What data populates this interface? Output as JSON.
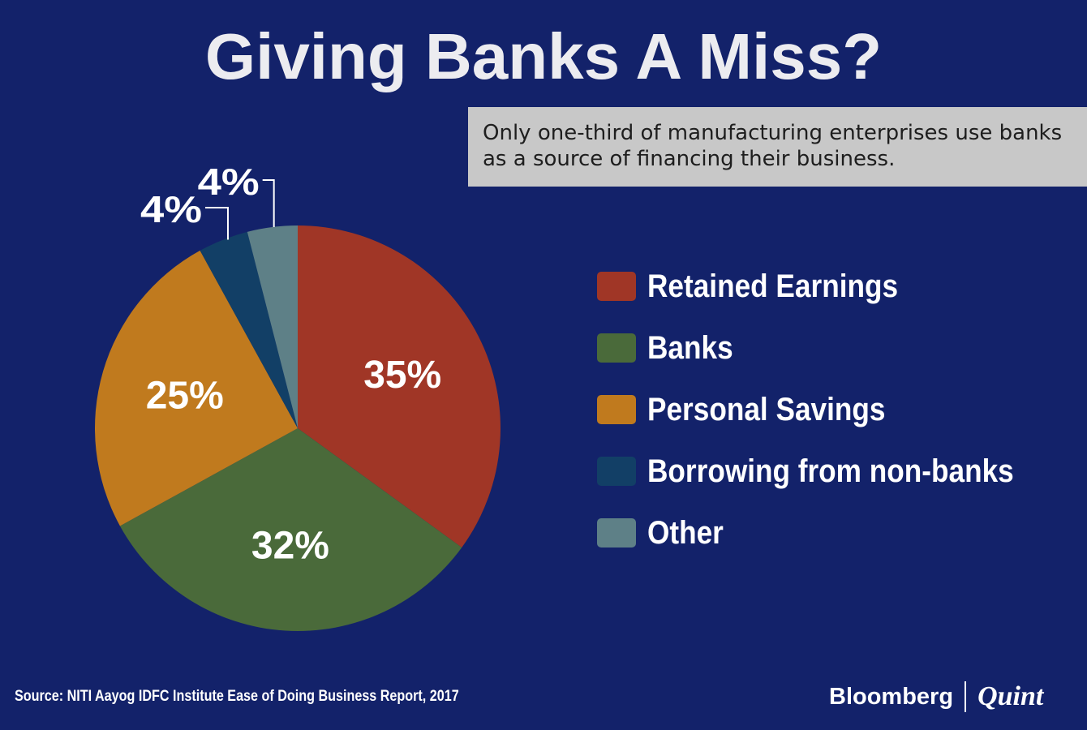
{
  "title": "Giving Banks A Miss?",
  "note": "Only one-third of manufacturing enterprises use banks as a source of financing their business.",
  "source": "Source: NITI Aayog IDFC Institute Ease of Doing Business Report, 2017",
  "brand": {
    "name": "Bloomberg",
    "suffix": "Quint"
  },
  "chart_data": {
    "type": "pie",
    "title": "Giving Banks A Miss?",
    "unit": "%",
    "legend_position": "right",
    "slices": [
      {
        "name": "Retained Earnings",
        "value": 35,
        "label": "35%",
        "color": "#a03626"
      },
      {
        "name": "Banks",
        "value": 32,
        "label": "32%",
        "color": "#4a6a3a"
      },
      {
        "name": "Personal Savings",
        "value": 25,
        "label": "25%",
        "color": "#c07a1e"
      },
      {
        "name": "Borrowing from non-banks",
        "value": 4,
        "label": "4%",
        "color": "#123f66"
      },
      {
        "name": "Other",
        "value": 4,
        "label": "4%",
        "color": "#5e8087"
      }
    ]
  }
}
